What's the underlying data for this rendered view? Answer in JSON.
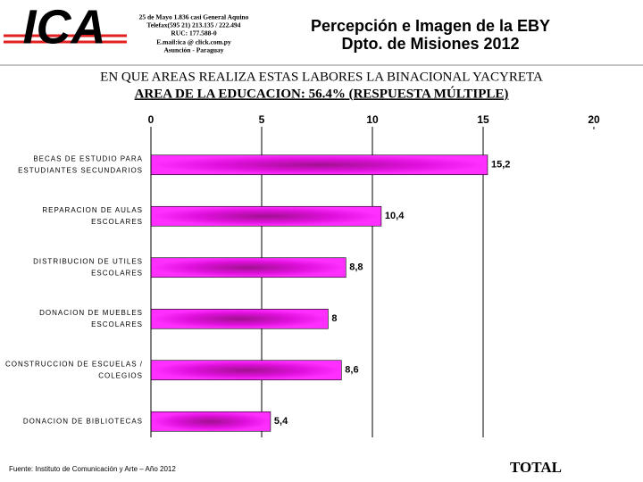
{
  "header": {
    "logo": "ICA",
    "address": [
      "25 de Mayo 1.836 casi General Aquino",
      "Telefax(595 21) 213.135 / 222.494",
      "RUC: 177.588-0",
      "E.mail:ica @ click.com.py",
      "Asunción - Paraguay"
    ],
    "title": [
      "Percepción e Imagen de la EBY",
      "Dpto. de Misiones 2012"
    ]
  },
  "chart_data": {
    "type": "barh",
    "title": "EN QUE AREAS REALIZA ESTAS LABORES LA BINACIONAL YACYRETA",
    "subtitle": "AREA DE LA EDUCACION: 56.4% (RESPUESTA MÚLTIPLE)",
    "categories": [
      [
        "BECAS DE ESTUDIO PARA",
        "ESTUDIANTES SECUNDARIOS"
      ],
      [
        "REPARACION DE AULAS",
        "ESCOLARES"
      ],
      [
        "DISTRIBUCION DE UTILES",
        "ESCOLARES"
      ],
      [
        "DONACION DE MUEBLES",
        "ESCOLARES"
      ],
      [
        "CONSTRUCCION DE ESCUELAS /",
        "COLEGIOS"
      ],
      [
        "DONACION DE BIBLIOTECAS"
      ]
    ],
    "values": [
      15.2,
      10.4,
      8.8,
      8,
      8.6,
      5.4
    ],
    "value_labels": [
      "15,2",
      "10,4",
      "8,8",
      "8",
      "8,6",
      "5,4"
    ],
    "color": "#ff00ff",
    "xlim": [
      0,
      20
    ],
    "xticks": [
      0,
      5,
      10,
      15,
      20
    ],
    "grid": true,
    "total_label": "TOTAL"
  },
  "footer": {
    "source": "Fuente: Instituto de Comunicación y Arte – Año 2012"
  }
}
